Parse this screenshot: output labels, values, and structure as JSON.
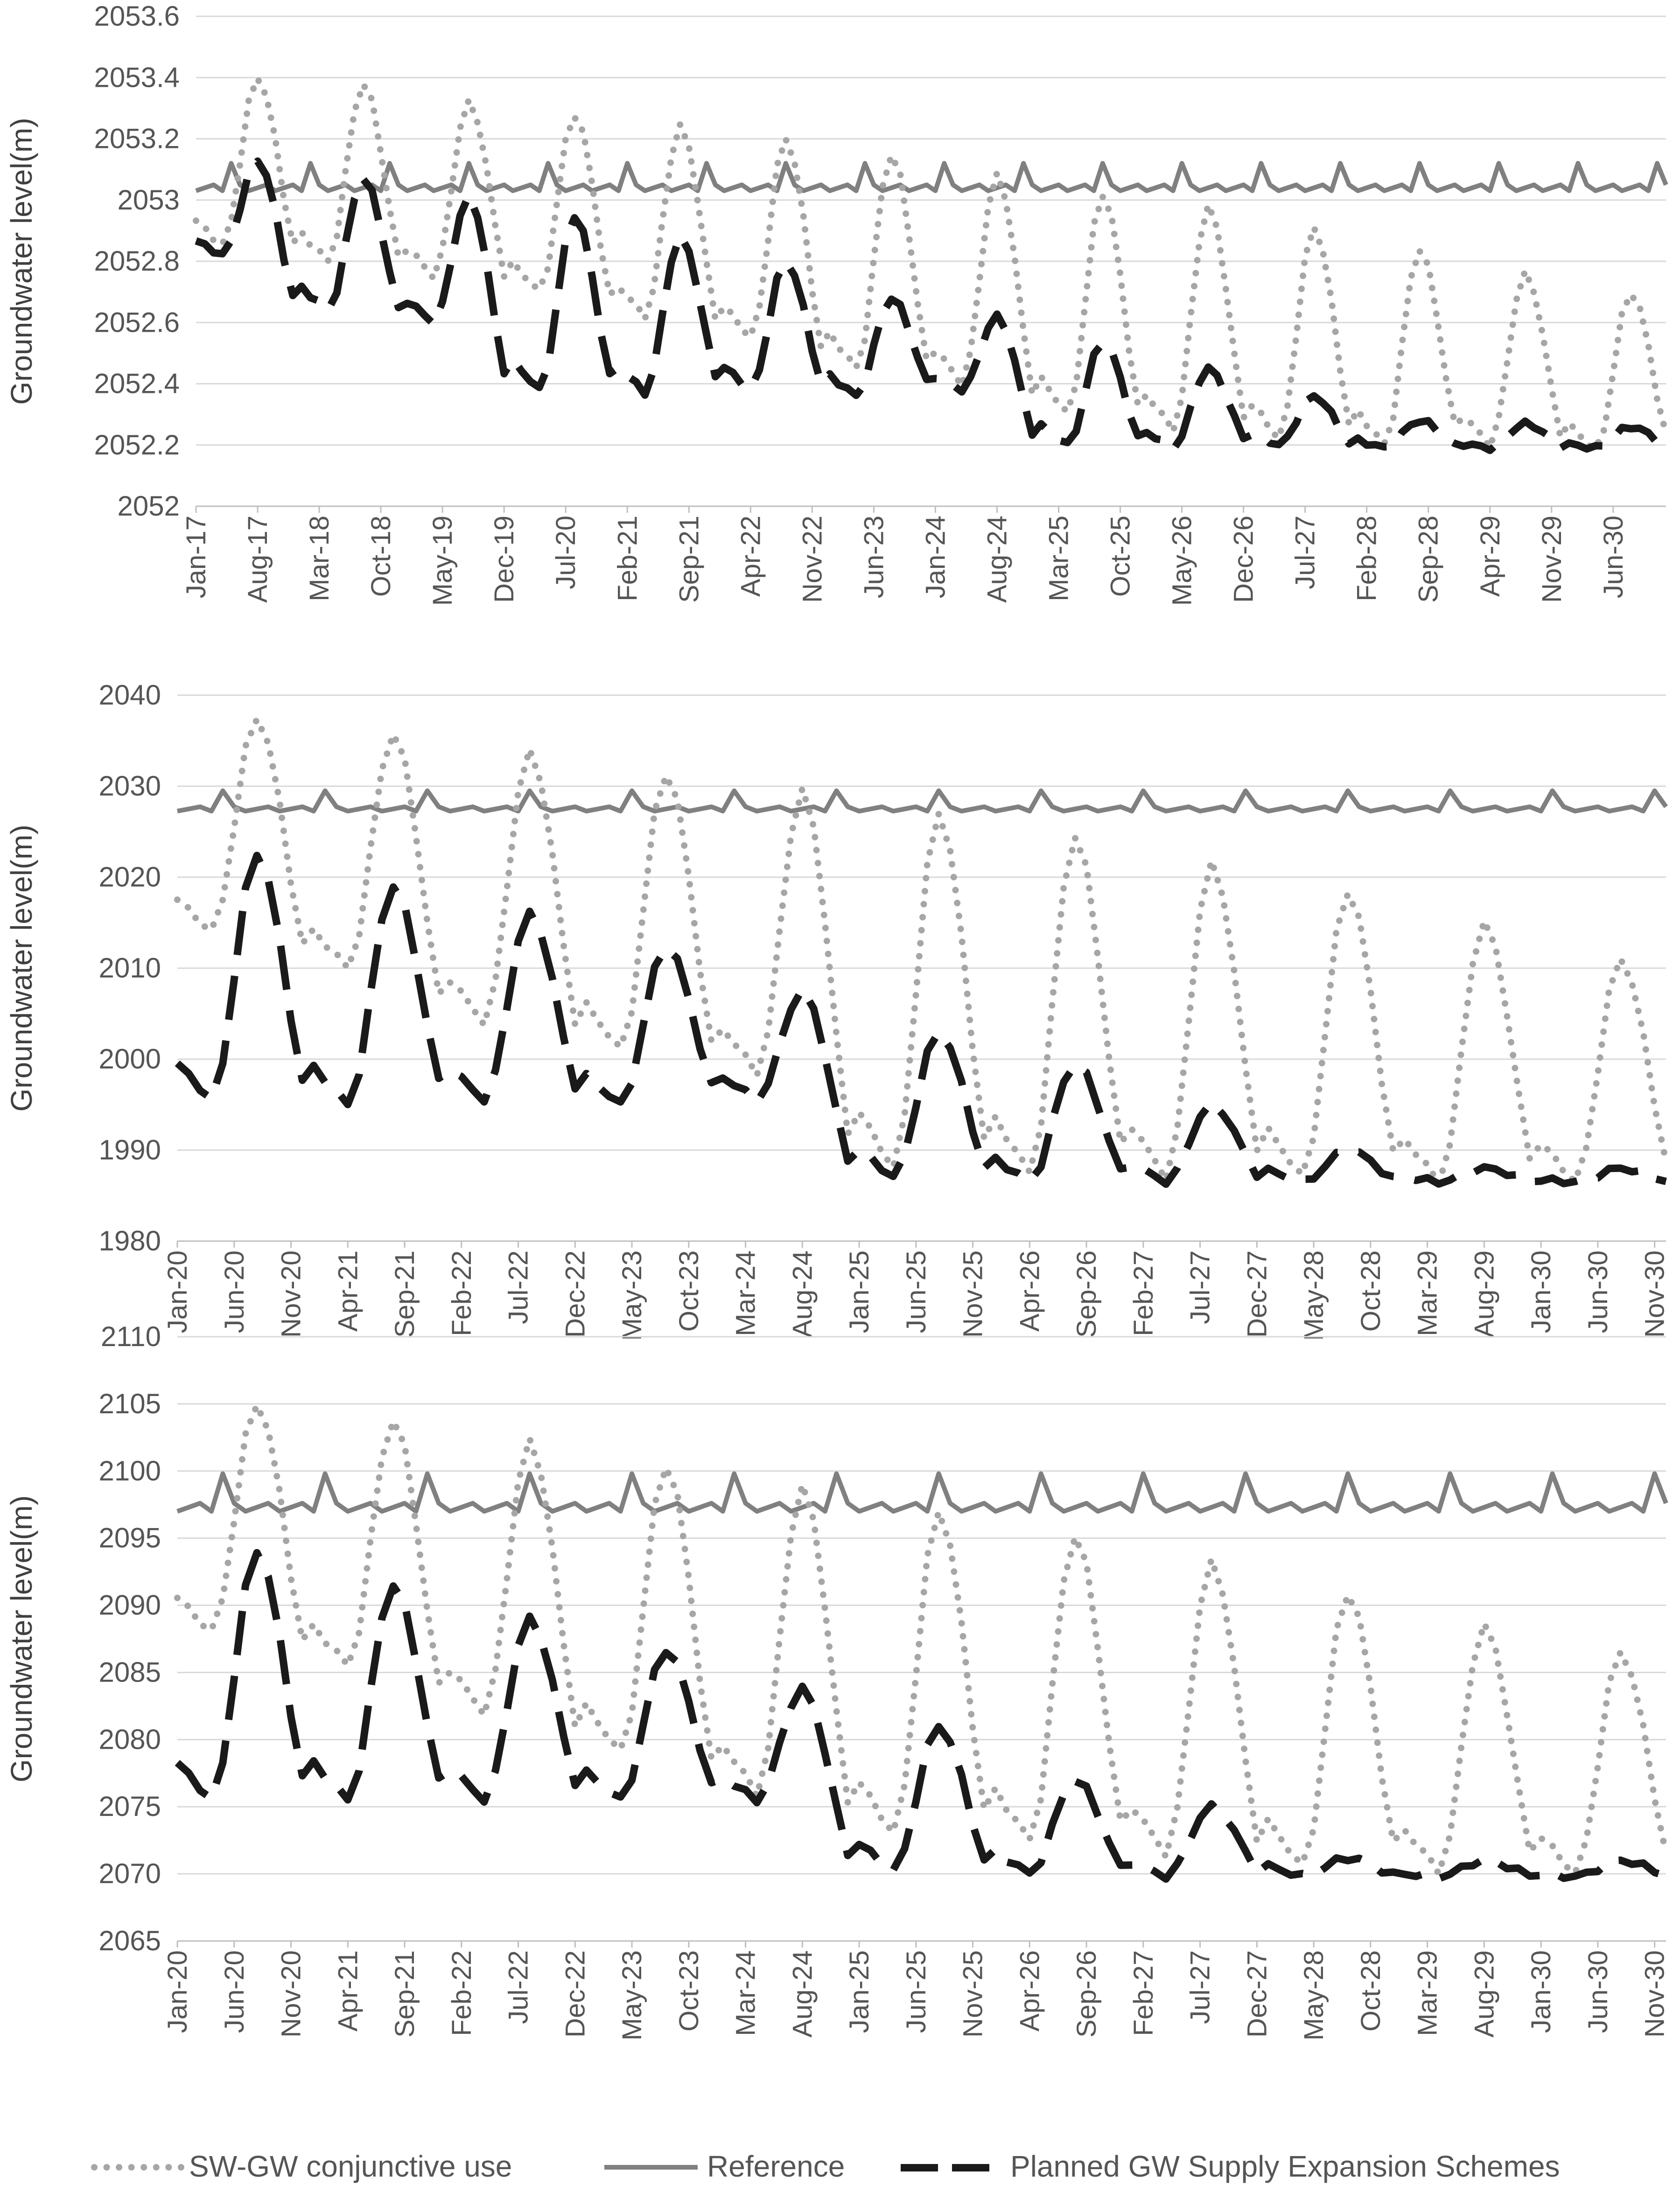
{
  "chart_data": [
    {
      "type": "line",
      "ylabel": "Groundwater level(m)",
      "ylim": [
        2052,
        2053.6
      ],
      "yticks": [
        "2052",
        "2052.2",
        "2052.4",
        "2052.6",
        "2052.8",
        "2053",
        "2053.2",
        "2053.4",
        "2053.6"
      ],
      "x_tick_labels": [
        "Jan-17",
        "Aug-17",
        "Mar-18",
        "Oct-18",
        "May-19",
        "Dec-19",
        "Jul-20",
        "Feb-21",
        "Sep-21",
        "Apr-22",
        "Nov-22",
        "Jun-23",
        "Jan-24",
        "Aug-24",
        "Mar-25",
        "Oct-25",
        "May-26",
        "Dec-26",
        "Jul-27",
        "Feb-28",
        "Sep-28",
        "Apr-29",
        "Nov-29",
        "Jun-30"
      ],
      "x_start": "Jan-17",
      "x_end": "Dec-30",
      "grid": true,
      "series": [
        {
          "name": "SW-GW conjunctive use",
          "peaks": [
            2053.4,
            2053.38,
            2053.32,
            2053.28,
            2053.24,
            2053.2,
            2053.15,
            2053.08,
            2053.02,
            2052.98,
            2052.91,
            2052.84,
            2052.76,
            2052.7
          ],
          "troughs": [
            2052.85,
            2052.8,
            2052.75,
            2052.7,
            2052.62,
            2052.55,
            2052.45,
            2052.4,
            2052.3,
            2052.25,
            2052.22,
            2052.2,
            2052.2,
            2052.18
          ]
        },
        {
          "name": "Reference",
          "base": 2053.04,
          "peak": 2053.12
        },
        {
          "name": "Planned GW Supply Expansion Schemes",
          "peaks": [
            2053.13,
            2053.07,
            2053.01,
            2052.95,
            2052.88,
            2052.8,
            2052.68,
            2052.62,
            2052.54,
            2052.45,
            2052.36,
            2052.28,
            2052.27,
            2052.26
          ],
          "troughs": [
            2052.82,
            2052.64,
            2052.6,
            2052.38,
            2052.37,
            2052.38,
            2052.36,
            2052.38,
            2052.2,
            2052.19,
            2052.2,
            2052.19,
            2052.19,
            2052.19
          ]
        }
      ]
    },
    {
      "type": "line",
      "ylabel": "Groundwater level(m)",
      "ylim": [
        1980,
        2040
      ],
      "yticks": [
        "1980",
        "1990",
        "2000",
        "2010",
        "2020",
        "2030",
        "2040"
      ],
      "x_tick_labels": [
        "Jan-20",
        "Jun-20",
        "Nov-20",
        "Apr-21",
        "Sep-21",
        "Feb-22",
        "Jul-22",
        "Dec-22",
        "May-23",
        "Oct-23",
        "Mar-24",
        "Aug-24",
        "Jan-25",
        "Jun-25",
        "Nov-25",
        "Apr-26",
        "Sep-26",
        "Feb-27",
        "Jul-27",
        "Dec-27",
        "May-28",
        "Oct-28",
        "Mar-29",
        "Aug-29",
        "Jan-30",
        "Jun-30",
        "Nov-30"
      ],
      "x_start": "Jan-20",
      "x_end": "Dec-30",
      "grid": true,
      "series": [
        {
          "name": "SW-GW conjunctive use",
          "peaks": [
            2037.5,
            2035.8,
            2033.8,
            2031.5,
            2029.5,
            2027.0,
            2024.5,
            2021.5,
            2018.5,
            2015.0,
            2011.0
          ],
          "troughs": [
            2014.0,
            2010.0,
            2004.0,
            2001.0,
            1998.5,
            1988.0,
            1987.5,
            1987.0,
            1987.0,
            1986.5,
            1986.5
          ]
        },
        {
          "name": "Reference",
          "base": 2027.5,
          "peak": 2029.5
        },
        {
          "name": "Planned GW Supply Expansion Schemes",
          "peaks": [
            2022.5,
            2019.0,
            2016.0,
            2012.5,
            2007.5,
            2003.0,
            1999.5,
            1995.0,
            1990.0,
            1988.0,
            1988.0
          ],
          "troughs": [
            1995.5,
            1995.0,
            1995.5,
            1995.0,
            1995.5,
            1987.0,
            1986.5,
            1986.5,
            1986.5,
            1986.5,
            1986.5
          ]
        }
      ]
    },
    {
      "type": "line",
      "ylabel": "Groundwater level(m)",
      "ylim": [
        2065,
        2110
      ],
      "yticks": [
        "2065",
        "2070",
        "2075",
        "2080",
        "2085",
        "2090",
        "2095",
        "2100",
        "2105",
        "2110"
      ],
      "x_tick_labels": [
        "Jan-20",
        "Jun-20",
        "Nov-20",
        "Apr-21",
        "Sep-21",
        "Feb-22",
        "Jul-22",
        "Dec-22",
        "May-23",
        "Oct-23",
        "Mar-24",
        "Aug-24",
        "Jan-25",
        "Jun-25",
        "Nov-25",
        "Apr-26",
        "Sep-26",
        "Feb-27",
        "Jul-27",
        "Dec-27",
        "May-28",
        "Oct-28",
        "Mar-29",
        "Aug-29",
        "Jan-30",
        "Jun-30",
        "Nov-30"
      ],
      "x_start": "Jan-20",
      "x_end": "Dec-30",
      "grid": true,
      "series": [
        {
          "name": "SW-GW conjunctive use",
          "peaks": [
            2105.0,
            2103.8,
            2102.2,
            2100.5,
            2098.8,
            2097.0,
            2095.2,
            2093.2,
            2091.0,
            2088.5,
            2086.5
          ],
          "troughs": [
            2088.0,
            2085.5,
            2082.0,
            2079.0,
            2076.0,
            2073.0,
            2072.5,
            2071.5,
            2070.5,
            2070.2,
            2070.0
          ]
        },
        {
          "name": "Reference",
          "base": 2097.3,
          "peak": 2099.8
        },
        {
          "name": "Planned GW Supply Expansion Schemes",
          "peaks": [
            2094.0,
            2091.5,
            2089.0,
            2086.7,
            2083.8,
            2081.0,
            2077.0,
            2075.0,
            2071.2,
            2071.0,
            2071.0
          ],
          "troughs": [
            2075.5,
            2075.5,
            2075.5,
            2075.5,
            2075.5,
            2070.2,
            2070.0,
            2069.8,
            2069.8,
            2069.8,
            2069.8
          ]
        }
      ]
    }
  ],
  "legend": {
    "items": [
      {
        "label": "SW-GW conjunctive use",
        "style": "dotted",
        "color": "#a6a6a6"
      },
      {
        "label": "Reference",
        "style": "solid",
        "color": "#808080"
      },
      {
        "label": "Planned GW Supply Expansion Schemes",
        "style": "dashed",
        "color": "#1a1a1a"
      }
    ]
  }
}
